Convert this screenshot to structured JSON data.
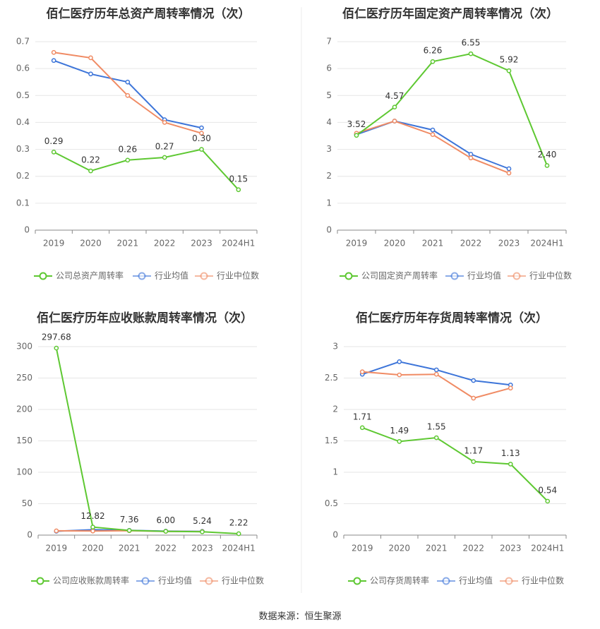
{
  "source": "数据来源：恒生聚源",
  "colors": {
    "company": "#5ec832",
    "avg": "#3d75d9",
    "median": "#f08b64",
    "grid": "#e6e6e6",
    "axis": "#888888",
    "text": "#666666"
  },
  "legend_labels": {
    "avg": "行业均值",
    "median": "行业中位数"
  },
  "chart_data": [
    {
      "type": "line",
      "title": "佰仁医疗历年总资产周转率情况（次）",
      "categories": [
        "2019",
        "2020",
        "2021",
        "2022",
        "2023",
        "2024H1"
      ],
      "y_ticks": [
        "0",
        "0.1",
        "0.2",
        "0.3",
        "0.4",
        "0.5",
        "0.6",
        "0.7"
      ],
      "ylim": [
        0,
        0.7
      ],
      "series": [
        {
          "name": "公司总资产周转率",
          "key": "company",
          "values": [
            0.29,
            0.22,
            0.26,
            0.27,
            0.3,
            0.15
          ],
          "labels": [
            "0.29",
            "0.22",
            "0.26",
            "0.27",
            "0.30",
            "0.15"
          ]
        },
        {
          "name": "行业均值",
          "key": "avg",
          "values": [
            0.63,
            0.58,
            0.55,
            0.41,
            0.38,
            null
          ]
        },
        {
          "name": "行业中位数",
          "key": "median",
          "values": [
            0.66,
            0.64,
            0.5,
            0.4,
            0.36,
            null
          ]
        }
      ]
    },
    {
      "type": "line",
      "title": "佰仁医疗历年固定资产周转率情况（次）",
      "categories": [
        "2019",
        "2020",
        "2021",
        "2022",
        "2023",
        "2024H1"
      ],
      "y_ticks": [
        "0",
        "1",
        "2",
        "3",
        "4",
        "5",
        "6",
        "7"
      ],
      "ylim": [
        0,
        7
      ],
      "series": [
        {
          "name": "公司固定资产周转率",
          "key": "company",
          "values": [
            3.52,
            4.57,
            6.26,
            6.55,
            5.92,
            2.4
          ],
          "labels": [
            "3.52",
            "4.57",
            "6.26",
            "6.55",
            "5.92",
            "2.40"
          ]
        },
        {
          "name": "行业均值",
          "key": "avg",
          "values": [
            3.55,
            4.05,
            3.72,
            2.82,
            2.28,
            null
          ]
        },
        {
          "name": "行业中位数",
          "key": "median",
          "values": [
            3.6,
            4.05,
            3.55,
            2.68,
            2.12,
            null
          ]
        }
      ]
    },
    {
      "type": "line",
      "title": "佰仁医疗历年应收账款周转率情况（次）",
      "categories": [
        "2019",
        "2020",
        "2021",
        "2022",
        "2023",
        "2024H1"
      ],
      "y_ticks": [
        "0",
        "50",
        "100",
        "150",
        "200",
        "250",
        "300"
      ],
      "ylim": [
        0,
        300
      ],
      "series": [
        {
          "name": "公司应收账款周转率",
          "key": "company",
          "values": [
            297.68,
            12.82,
            7.36,
            6.0,
            5.24,
            2.22
          ],
          "labels": [
            "297.68",
            "12.82",
            "7.36",
            "6.00",
            "5.24",
            "2.22"
          ]
        },
        {
          "name": "行业均值",
          "key": "avg",
          "values": [
            6.2,
            8.5,
            7.6,
            6.3,
            6.0,
            null
          ]
        },
        {
          "name": "行业中位数",
          "key": "median",
          "values": [
            6.8,
            6.5,
            7.0,
            6.0,
            5.6,
            null
          ]
        }
      ]
    },
    {
      "type": "line",
      "title": "佰仁医疗历年存货周转率情况（次）",
      "categories": [
        "2019",
        "2020",
        "2021",
        "2022",
        "2023",
        "2024H1"
      ],
      "y_ticks": [
        "0",
        "0.5",
        "1",
        "1.5",
        "2",
        "2.5",
        "3"
      ],
      "ylim": [
        0,
        3
      ],
      "series": [
        {
          "name": "公司存货周转率",
          "key": "company",
          "values": [
            1.71,
            1.49,
            1.55,
            1.17,
            1.13,
            0.54
          ],
          "labels": [
            "1.71",
            "1.49",
            "1.55",
            "1.17",
            "1.13",
            "0.54"
          ]
        },
        {
          "name": "行业均值",
          "key": "avg",
          "values": [
            2.56,
            2.76,
            2.63,
            2.46,
            2.39,
            null
          ]
        },
        {
          "name": "行业中位数",
          "key": "median",
          "values": [
            2.6,
            2.55,
            2.56,
            2.18,
            2.34,
            null
          ]
        }
      ]
    }
  ]
}
